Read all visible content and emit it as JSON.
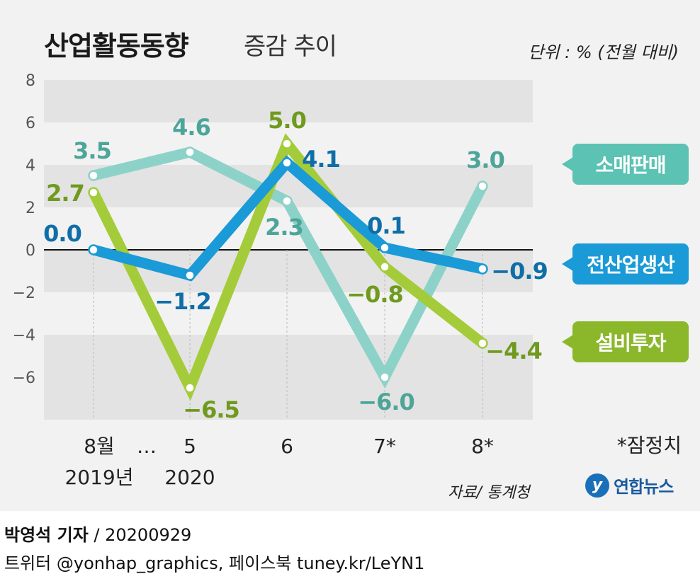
{
  "header": {
    "title_main": "산업활동동향",
    "title_sub": "증감 추이",
    "unit": "단위 : % (전월 대비)"
  },
  "colors": {
    "retail": "#8dd2c8",
    "retail_label": "#4da59a",
    "industry": "#1a9ad6",
    "industry_label": "#0f6ea8",
    "capex": "#a4cc3a",
    "capex_label": "#6f9a1e",
    "band": "#e3e3e3"
  },
  "chart_data": {
    "type": "line",
    "categories": [
      "8월",
      "5",
      "6",
      "7*",
      "8*"
    ],
    "x_tick_labels": [
      "8월",
      "…",
      "5",
      "6",
      "7*",
      "8*"
    ],
    "x_year_labels": [
      "2019년",
      "2020"
    ],
    "ylim": [
      -8,
      8
    ],
    "yticks": [
      "8",
      "6",
      "4",
      "2",
      "0",
      "−2",
      "−4",
      "−6"
    ],
    "grid": "alternating horizontal bands",
    "series": [
      {
        "name": "소매판매",
        "values": [
          3.5,
          4.6,
          2.3,
          -6.0,
          3.0
        ],
        "labels": [
          "3.5",
          "4.6",
          "2.3",
          "−6.0",
          "3.0"
        ]
      },
      {
        "name": "전산업생산",
        "values": [
          0.0,
          -1.2,
          4.1,
          0.1,
          -0.9
        ],
        "labels": [
          "0.0",
          "−1.2",
          "4.1",
          "0.1",
          "−0.9"
        ]
      },
      {
        "name": "설비투자",
        "values": [
          2.7,
          -6.5,
          5.0,
          -0.8,
          -4.4
        ],
        "labels": [
          "2.7",
          "−6.5",
          "5.0",
          "−0.8",
          "−4.4"
        ]
      }
    ],
    "note": "*잠정치"
  },
  "legend": {
    "retail": "소매판매",
    "industry": "전산업생산",
    "capex": "설비투자"
  },
  "footer": {
    "source": "자료/ 통계청",
    "logo_text": "연합뉴스",
    "logo_mark": "y",
    "reporter_name": "박영석 기자",
    "reporter_date": "/ 20200929",
    "social": "트위터 @yonhap_graphics, 페이스북 tuney.kr/LeYN1"
  }
}
